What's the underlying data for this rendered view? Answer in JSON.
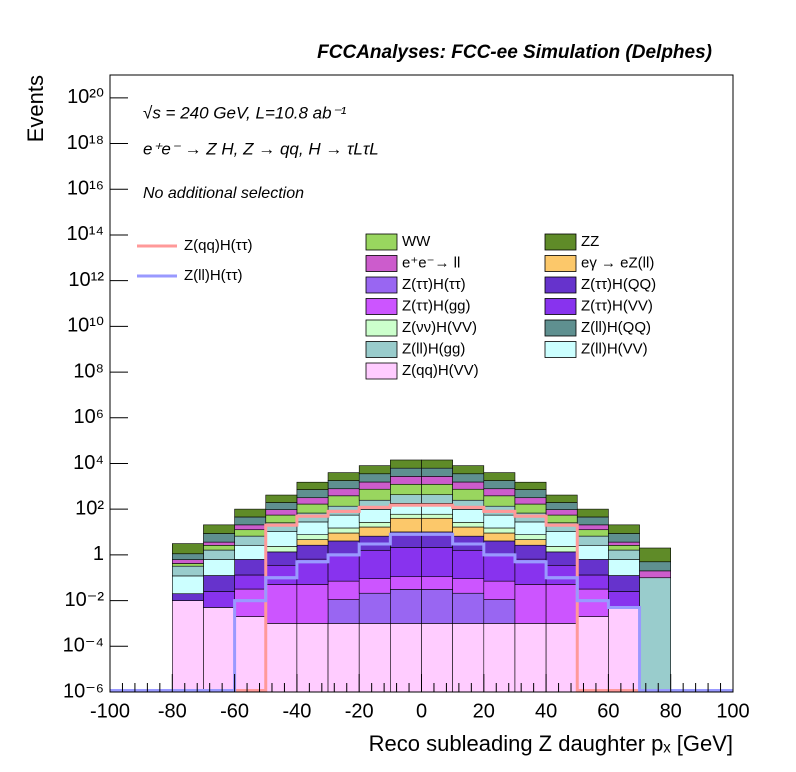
{
  "chart_data": {
    "type": "stacked-histogram",
    "title": "FCCAnalyses: FCC-ee Simulation (Delphes)",
    "annotations": [
      "√s = 240 GeV, L=10.8 ab⁻¹",
      "e⁺e⁻ → Z H, Z → qq, H → τLτL",
      "No additional selection"
    ],
    "xlabel": "Reco subleading Z daughter pₓ [GeV]",
    "ylabel": "Events",
    "log_y": true,
    "xlim": [
      -100,
      100
    ],
    "ylim": [
      1e-06,
      1e+21
    ],
    "xticks": [
      -100,
      -80,
      -60,
      -40,
      -20,
      0,
      20,
      40,
      60,
      80,
      100
    ],
    "yticks": [
      {
        "value": 1e-06,
        "label": "10⁻⁶"
      },
      {
        "value": 0.0001,
        "label": "10⁻⁴"
      },
      {
        "value": 0.01,
        "label": "10⁻²"
      },
      1,
      {
        "value": 100,
        "label": "10²"
      },
      {
        "value": 10000,
        "label": "10⁴"
      },
      {
        "value": 1000000.0,
        "label": "10⁶"
      },
      {
        "value": 100000000.0,
        "label": "10⁸"
      },
      {
        "value": 10000000000.0,
        "label": "10¹⁰"
      },
      {
        "value": 1000000000000.0,
        "label": "10¹²"
      },
      {
        "value": 100000000000000.0,
        "label": "10¹⁴"
      },
      {
        "value": 1e+16,
        "label": "10¹⁶"
      },
      {
        "value": 1e+18,
        "label": "10¹⁸"
      },
      {
        "value": 1e+20,
        "label": "10²⁰"
      }
    ],
    "bins": [
      -100,
      -90,
      -80,
      -70,
      -60,
      -50,
      -40,
      -30,
      -20,
      -10,
      0,
      10,
      20,
      30,
      40,
      50,
      60,
      70,
      80,
      90,
      100
    ],
    "series": [
      {
        "name": "Z(qq)H(VV)",
        "color": "#ffccff",
        "values": [
          0,
          0,
          0.01,
          0.005,
          0.002,
          0.001,
          0.001,
          0.001,
          0.001,
          0.001,
          0.001,
          0.001,
          0.001,
          0.001,
          0.001,
          0.002,
          0.005,
          0,
          0,
          0
        ]
      },
      {
        "name": "Z(ττ)H(ττ)",
        "color": "#9966f2",
        "values": [
          0,
          0,
          0,
          0,
          0,
          0,
          0,
          0.01,
          0.02,
          0.03,
          0.03,
          0.02,
          0.01,
          0,
          0,
          0,
          0,
          0,
          0,
          0
        ]
      },
      {
        "name": "Z(ττ)H(gg)",
        "color": "#cc55ff",
        "values": [
          0,
          0,
          0,
          0,
          0.03,
          0.05,
          0.05,
          0.06,
          0.07,
          0.08,
          0.08,
          0.07,
          0.06,
          0.05,
          0.05,
          0.03,
          0,
          0,
          0,
          0
        ]
      },
      {
        "name": "Z(ττ)H(VV)",
        "color": "#8833ee",
        "values": [
          0,
          0,
          0,
          0.02,
          0.1,
          0.3,
          0.6,
          1,
          1.5,
          2,
          2,
          1.5,
          1,
          0.6,
          0.3,
          0.1,
          0.02,
          0,
          0,
          0
        ]
      },
      {
        "name": "Z(ττ)H(QQ)",
        "color": "#6633cc",
        "values": [
          0,
          0,
          0.01,
          0.1,
          0.5,
          1,
          2,
          3,
          5,
          8,
          8,
          5,
          3,
          2,
          1,
          0.5,
          0.1,
          0,
          0,
          0
        ]
      },
      {
        "name": "eγ → eZ(ll)",
        "color": "#fcc86a",
        "values": [
          0,
          0,
          0,
          0,
          0,
          0,
          2,
          5,
          10,
          30,
          30,
          10,
          5,
          2,
          0,
          0,
          0,
          0,
          0,
          0
        ]
      },
      {
        "name": "Z(νν)H(VV)",
        "color": "#ccffcc",
        "values": [
          0,
          0,
          0,
          0,
          0,
          1,
          3,
          6,
          10,
          20,
          20,
          10,
          6,
          3,
          1,
          0,
          0,
          0,
          0,
          0
        ]
      },
      {
        "name": "Z(ll)H(VV)",
        "color": "#ccffff",
        "values": [
          0,
          0,
          0.1,
          0.5,
          2,
          8,
          20,
          40,
          70,
          120,
          120,
          70,
          40,
          20,
          8,
          2,
          0.5,
          0,
          0,
          0
        ]
      },
      {
        "name": "Z(ll)H(gg)",
        "color": "#99cccc",
        "values": [
          0,
          0,
          0.2,
          1,
          4,
          15,
          40,
          80,
          150,
          250,
          250,
          150,
          80,
          40,
          15,
          4,
          1,
          0.1,
          0,
          0
        ]
      },
      {
        "name": "WW",
        "color": "#99d65f",
        "values": [
          0,
          0,
          0.1,
          1,
          6,
          30,
          100,
          250,
          500,
          800,
          800,
          500,
          250,
          100,
          30,
          6,
          1,
          0,
          0,
          0
        ]
      },
      {
        "name": "e⁺e⁻→ ll",
        "color": "#cc5ccc",
        "values": [
          0,
          0,
          0.2,
          1,
          8,
          40,
          150,
          400,
          800,
          1500,
          1500,
          800,
          400,
          150,
          40,
          8,
          1,
          0.1,
          0,
          0
        ]
      },
      {
        "name": "Z(ll)H(QQ)",
        "color": "#5f9090",
        "values": [
          0,
          0,
          0.5,
          5,
          25,
          100,
          400,
          1000,
          2000,
          3500,
          3500,
          2000,
          1000,
          400,
          100,
          25,
          5,
          0.3,
          0,
          0
        ]
      },
      {
        "name": "ZZ",
        "color": "#5f8b28",
        "values": [
          0,
          0,
          2,
          12,
          55,
          220,
          800,
          2200,
          4500,
          8000,
          8000,
          4500,
          2200,
          800,
          220,
          55,
          12,
          1.5,
          0,
          0
        ]
      }
    ],
    "overlay_series": [
      {
        "name": "Z(qq)H(ττ)",
        "color": "#ff9999",
        "values": [
          0,
          0,
          0,
          0,
          0,
          20,
          50,
          80,
          120,
          150,
          150,
          120,
          80,
          50,
          20,
          0,
          0,
          0,
          0,
          0
        ]
      },
      {
        "name": "Z(ll)H(ττ)",
        "color": "#9999ff",
        "values": [
          0,
          0,
          0,
          0,
          0.01,
          0.1,
          0.5,
          1,
          3,
          8,
          8,
          3,
          1,
          0.5,
          0.1,
          0.01,
          0.005,
          0,
          0,
          0
        ]
      }
    ]
  }
}
